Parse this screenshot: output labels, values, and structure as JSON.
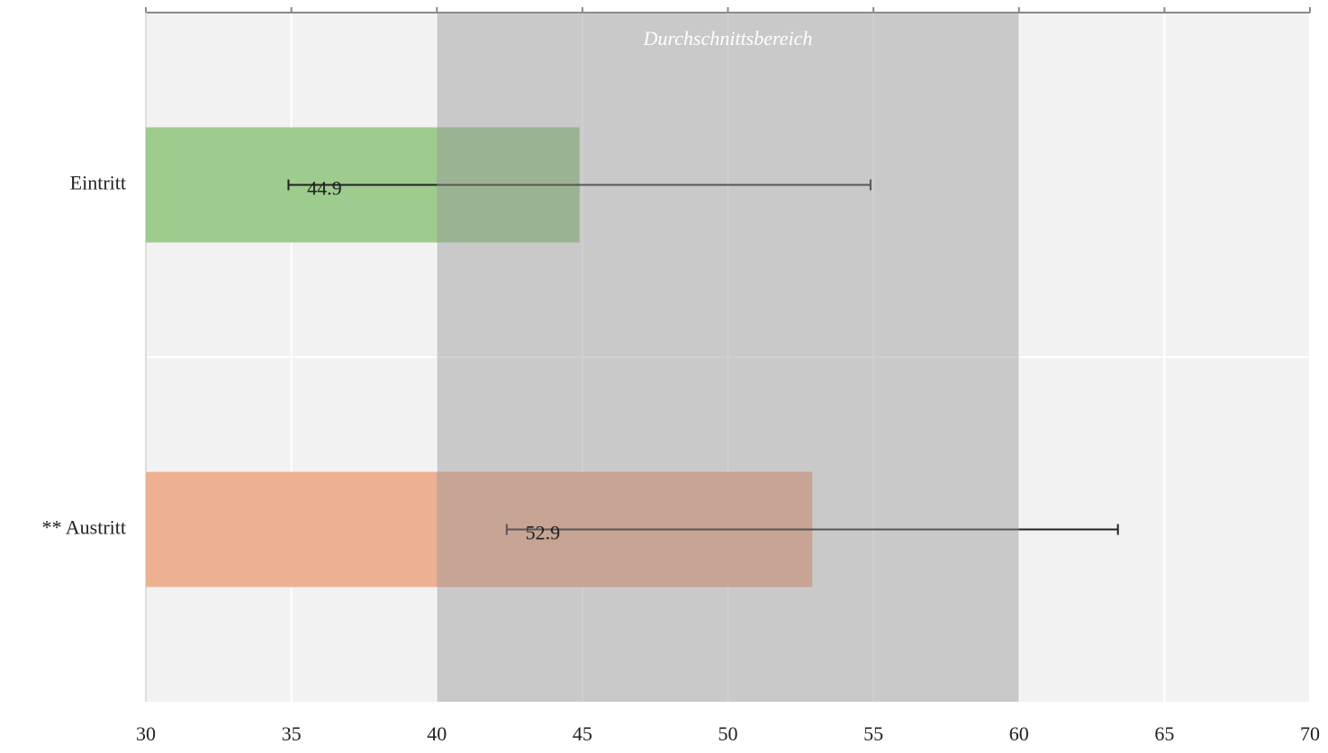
{
  "chart_data": {
    "type": "hbar",
    "categories": [
      "Eintritt",
      "** Austritt"
    ],
    "values": [
      44.9,
      52.9
    ],
    "errors": [
      10,
      10.5
    ],
    "colors": [
      "#9ecb8e",
      "#eeb092"
    ],
    "band": {
      "range": [
        40,
        60
      ],
      "label": "Durchschnittsbereich"
    },
    "xlim": [
      30,
      70
    ],
    "xticks": [
      30,
      35,
      40,
      45,
      50,
      55,
      60,
      65,
      70
    ],
    "grid": true
  }
}
